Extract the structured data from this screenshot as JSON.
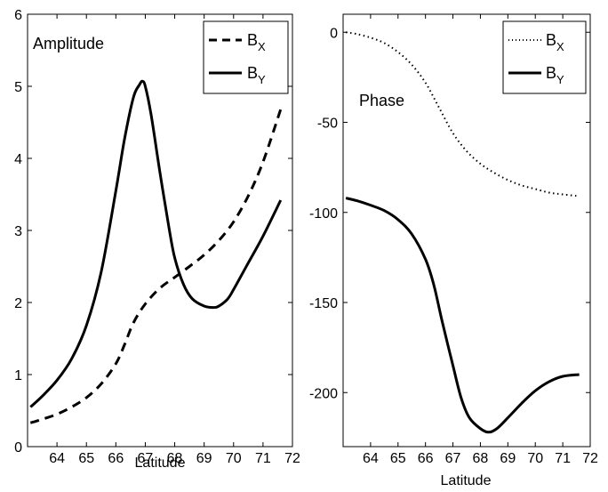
{
  "chart_data": [
    {
      "type": "line",
      "title": "",
      "annotation": "Amplitude",
      "xlabel": "Latitude",
      "ylabel": "",
      "xlim": [
        63,
        72
      ],
      "ylim": [
        0,
        6
      ],
      "xticks": [
        64,
        65,
        66,
        67,
        68,
        69,
        70,
        71,
        72
      ],
      "yticks": [
        0,
        1,
        2,
        3,
        4,
        5,
        6
      ],
      "legend_position": "top-right",
      "series": [
        {
          "name": "B",
          "name_sub": "X",
          "style": "dashed",
          "color": "#000000",
          "x": [
            63.1,
            63.5,
            64.0,
            64.5,
            65.0,
            65.5,
            66.0,
            66.3,
            66.6,
            67.0,
            67.5,
            68.0,
            68.5,
            69.0,
            69.5,
            70.0,
            70.5,
            71.0,
            71.6
          ],
          "y": [
            0.33,
            0.38,
            0.45,
            0.55,
            0.68,
            0.87,
            1.15,
            1.42,
            1.72,
            1.98,
            2.2,
            2.35,
            2.5,
            2.66,
            2.86,
            3.12,
            3.48,
            3.95,
            4.68
          ]
        },
        {
          "name": "B",
          "name_sub": "Y",
          "style": "solid",
          "color": "#000000",
          "x": [
            63.1,
            63.5,
            64.0,
            64.5,
            65.0,
            65.5,
            66.0,
            66.3,
            66.6,
            66.8,
            66.9,
            67.0,
            67.2,
            67.5,
            67.8,
            68.0,
            68.3,
            68.6,
            69.0,
            69.3,
            69.5,
            69.8,
            70.0,
            70.5,
            71.0,
            71.6
          ],
          "y": [
            0.55,
            0.7,
            0.92,
            1.22,
            1.68,
            2.42,
            3.55,
            4.28,
            4.85,
            5.02,
            5.07,
            5.0,
            4.6,
            3.8,
            3.05,
            2.62,
            2.25,
            2.05,
            1.95,
            1.93,
            1.95,
            2.05,
            2.18,
            2.55,
            2.92,
            3.42
          ]
        }
      ]
    },
    {
      "type": "line",
      "title": "",
      "annotation": "Phase",
      "xlabel": "Latitude",
      "ylabel": "",
      "xlim": [
        63,
        72
      ],
      "ylim": [
        -230,
        10
      ],
      "xticks": [
        64,
        65,
        66,
        67,
        68,
        69,
        70,
        71,
        72
      ],
      "yticks": [
        0,
        -50,
        -100,
        -150,
        -200
      ],
      "legend_position": "top-right",
      "series": [
        {
          "name": "B",
          "name_sub": "X",
          "style": "dotted",
          "color": "#000000",
          "x": [
            63.1,
            63.5,
            64.0,
            64.5,
            65.0,
            65.5,
            66.0,
            66.5,
            67.0,
            67.5,
            68.0,
            68.5,
            69.0,
            69.5,
            70.0,
            70.5,
            71.0,
            71.6
          ],
          "y": [
            0,
            -1,
            -3,
            -6,
            -11,
            -18,
            -28,
            -42,
            -56,
            -66,
            -73,
            -78,
            -82,
            -85,
            -87,
            -89,
            -90,
            -91
          ]
        },
        {
          "name": "B",
          "name_sub": "Y",
          "style": "solid",
          "color": "#000000",
          "x": [
            63.1,
            63.5,
            64.0,
            64.5,
            65.0,
            65.5,
            66.0,
            66.3,
            66.6,
            67.0,
            67.3,
            67.6,
            68.0,
            68.3,
            68.6,
            69.0,
            69.5,
            70.0,
            70.5,
            71.0,
            71.6
          ],
          "y": [
            -92,
            -93.5,
            -96,
            -99,
            -104,
            -112,
            -126,
            -140,
            -160,
            -185,
            -203,
            -214,
            -220,
            -222,
            -220,
            -214,
            -206,
            -199,
            -194,
            -191,
            -190
          ]
        }
      ]
    }
  ]
}
